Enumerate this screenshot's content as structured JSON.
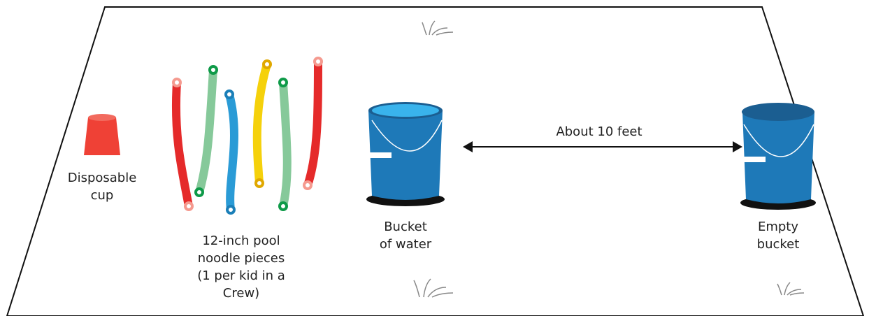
{
  "labels": {
    "cup": [
      "Disposable",
      "cup"
    ],
    "noodles": [
      "12-inch pool",
      "noodle pieces",
      "(1 per kid in a",
      "Crew)"
    ],
    "water_bucket": [
      "Bucket",
      "of water"
    ],
    "empty_bucket": [
      "Empty",
      "bucket"
    ],
    "distance": "About 10 feet"
  }
}
